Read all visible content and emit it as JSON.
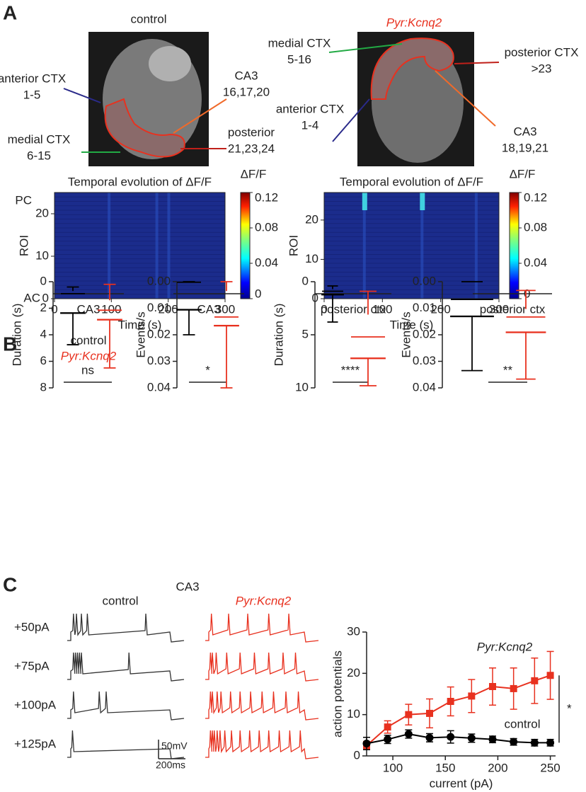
{
  "panels": {
    "a": "A",
    "b": "B",
    "c": "C"
  },
  "panel_a": {
    "left_title": "control",
    "right_title": "Pyr:Kcnq2",
    "left_labels": [
      [
        "anterior CTX",
        "1-5"
      ],
      [
        "medial CTX",
        "6-15"
      ],
      [
        "CA3",
        "16,17,20"
      ],
      [
        "posterior",
        "21,23,24"
      ]
    ],
    "right_labels": [
      [
        "medial CTX",
        "5-16"
      ],
      [
        "posterior CTX",
        ">23"
      ],
      [
        "anterior CTX",
        "1-4"
      ],
      [
        "CA3",
        "18,19,21"
      ]
    ]
  },
  "panel_c": {
    "region": "CA3",
    "control": "control",
    "mutant": "Pyr:Kcnq2",
    "steps": [
      "+50pA",
      "+75pA",
      "+100pA",
      "+125pA"
    ],
    "scalebar": [
      "50mV",
      "200ms"
    ]
  },
  "chart_data": [
    {
      "type": "heatmap",
      "title": "Temporal evolution of ΔF/F",
      "xlabel": "Time (s)",
      "ylabel": "ROI",
      "xlim": [
        0,
        300
      ],
      "xticks": [
        0,
        100,
        200,
        300
      ],
      "ylim": [
        0,
        25
      ],
      "yticks": [
        0,
        10,
        20
      ],
      "top_label": "PC",
      "bottom_label": "AC",
      "colorbar": {
        "label": "ΔF/F",
        "lim": [
          0,
          0.12
        ],
        "ticks": [
          0,
          0.04,
          0.08,
          0.12
        ]
      }
    },
    {
      "type": "heatmap",
      "title": "Temporal evolution of ΔF/F",
      "xlabel": "Time (s)",
      "ylabel": "ROI",
      "xlim": [
        0,
        300
      ],
      "xticks": [
        0,
        100,
        200,
        300
      ],
      "ylim": [
        0,
        27
      ],
      "yticks": [
        0,
        10,
        20
      ],
      "colorbar": {
        "label": "ΔF/F",
        "lim": [
          0,
          0.12
        ],
        "ticks": [
          0,
          0.04,
          0.08,
          0.12
        ]
      }
    },
    {
      "type": "box",
      "ylabel": "Duration (s)",
      "xlabel": "CA3",
      "significance": "ns",
      "ylim": [
        0,
        8
      ],
      "yticks": [
        0,
        2,
        4,
        6,
        8
      ],
      "series": [
        {
          "name": "control",
          "color": "#000000",
          "min": 0.4,
          "q1": 0.7,
          "median": 0.9,
          "q3": 2.35,
          "max": 4.75
        },
        {
          "name": "Pyr:Kcnq2",
          "color": "#e8311f",
          "min": 0.2,
          "q1": 1.4,
          "median": 2.15,
          "q3": 2.85,
          "max": 6.5
        }
      ]
    },
    {
      "type": "box",
      "ylabel": "Events/s",
      "xlabel": "CA3",
      "significance": "*",
      "ylim": [
        0,
        0.04
      ],
      "yticks": [
        {
          "value": 0,
          "label": "0.00"
        },
        0.01,
        0.02,
        0.03,
        0.04
      ],
      "series": [
        {
          "name": "control",
          "color": "#000000",
          "min": 0,
          "q1": 0,
          "median": 0.0002,
          "q3": 0.0105,
          "max": 0.02
        },
        {
          "name": "Pyr:Kcnq2",
          "color": "#e8311f",
          "min": 0,
          "q1": 0.0035,
          "median": 0.0133,
          "q3": 0.0165,
          "max": 0.04
        }
      ]
    },
    {
      "type": "box",
      "ylabel": "Duration (s)",
      "xlabel": "posterior ctx",
      "significance": "****",
      "ylim": [
        0,
        10
      ],
      "yticks": [
        0,
        5,
        10
      ],
      "series": [
        {
          "name": "control",
          "color": "#000000",
          "min": 0.4,
          "q1": 0.7,
          "median": 0.9,
          "q3": 1.2,
          "max": 3.8
        },
        {
          "name": "Pyr:Kcnq2",
          "color": "#e8311f",
          "min": 0.9,
          "q1": 3.1,
          "median": 5.2,
          "q3": 7.2,
          "max": 9.8
        }
      ]
    },
    {
      "type": "box",
      "ylabel": "Events/s",
      "xlabel": "posterior ctx",
      "significance": "**",
      "ylim": [
        0,
        0.04
      ],
      "yticks": [
        {
          "value": 0,
          "label": "0.00"
        },
        0.01,
        0.02,
        0.03,
        0.04
      ],
      "series": [
        {
          "name": "control",
          "color": "#000000",
          "min": 0,
          "q1": 0,
          "median": 0.0067,
          "q3": 0.013,
          "max": 0.0335
        },
        {
          "name": "Pyr:Kcnq2",
          "color": "#e8311f",
          "min": 0.0033,
          "q1": 0.0103,
          "median": 0.0133,
          "q3": 0.019,
          "max": 0.0367
        }
      ]
    },
    {
      "type": "line",
      "xlabel": "current (pA)",
      "ylabel": "action potentials",
      "significance": "*",
      "xlim": [
        75,
        255
      ],
      "xticks": [
        100,
        150,
        200,
        250
      ],
      "ylim": [
        0,
        30
      ],
      "yticks": [
        0,
        10,
        20,
        30
      ],
      "x": [
        75,
        95,
        115,
        135,
        155,
        175,
        195,
        215,
        235,
        250
      ],
      "series": [
        {
          "name": "Pyr:Kcnq2",
          "color": "#e8311f",
          "marker": "square",
          "values": [
            2.5,
            7,
            10,
            10.3,
            13.2,
            14.5,
            16.8,
            16.3,
            18.2,
            19.5
          ],
          "errors": [
            1,
            1.5,
            2.5,
            3.5,
            3.5,
            4,
            4.5,
            5,
            5.5,
            5.8
          ]
        },
        {
          "name": "control",
          "color": "#000000",
          "marker": "circle",
          "values": [
            3,
            4,
            5.3,
            4.4,
            4.6,
            4.3,
            4,
            3.4,
            3.2,
            3.2
          ],
          "errors": [
            1.5,
            1,
            1,
            1,
            1.5,
            1,
            0.8,
            0.8,
            0.8,
            0.8
          ]
        }
      ]
    }
  ]
}
